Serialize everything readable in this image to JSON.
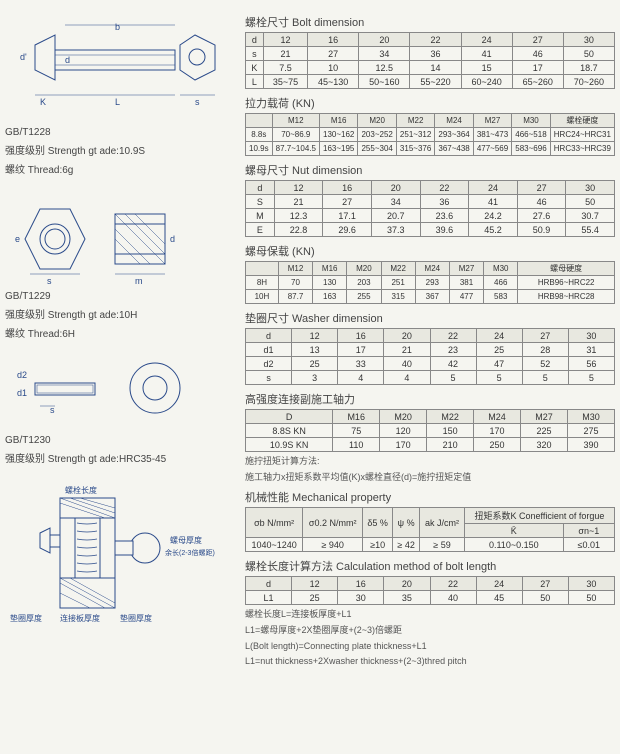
{
  "diagrams": {
    "bolt": {
      "standard": "GB/T1228",
      "strength_label": "强度级别 Strength gt ade:10.9S",
      "thread_label": "螺纹 Thread:6g",
      "dims": [
        "d'",
        "d",
        "b",
        "L",
        "K",
        "s"
      ]
    },
    "nut": {
      "standard": "GB/T1229",
      "strength_label": "强度级别 Strength gt ade:10H",
      "thread_label": "螺纹 Thread:6H",
      "dims": [
        "e",
        "s",
        "d",
        "m"
      ]
    },
    "washer": {
      "standard": "GB/T1230",
      "strength_label": "强度级别 Strength gt ade:HRC35-45",
      "dims": [
        "d2",
        "d1",
        "s"
      ]
    },
    "assembly": {
      "bolt_length": "螺栓长度",
      "bolt_thick": "螺母厚度",
      "plate_thick": "连接板厚度",
      "washer_thick": "垫圈厚度",
      "spare": "螺母厚度 余长(2-3倍螺距)"
    }
  },
  "bolt_dimension": {
    "title": "螺栓尺寸  Bolt dimension",
    "headers": [
      "d",
      "12",
      "16",
      "20",
      "22",
      "24",
      "27",
      "30"
    ],
    "rows": [
      [
        "s",
        "21",
        "27",
        "34",
        "36",
        "41",
        "46",
        "50"
      ],
      [
        "K",
        "7.5",
        "10",
        "12.5",
        "14",
        "15",
        "17",
        "18.7"
      ],
      [
        "L",
        "35~75",
        "45~130",
        "50~160",
        "55~220",
        "60~240",
        "65~260",
        "70~260"
      ]
    ]
  },
  "tensile": {
    "title": "拉力载荷 (KN)",
    "headers": [
      "",
      "M12",
      "M16",
      "M20",
      "M22",
      "M24",
      "M27",
      "M30",
      "螺栓硬度"
    ],
    "rows": [
      [
        "8.8s",
        "70~86.9",
        "130~162",
        "203~252",
        "251~312",
        "293~364",
        "381~473",
        "466~518",
        "HRC24~HRC31"
      ],
      [
        "10.9s",
        "87.7~104.5",
        "163~195",
        "255~304",
        "315~376",
        "367~438",
        "477~569",
        "583~696",
        "HRC33~HRC39"
      ]
    ]
  },
  "nut_dimension": {
    "title": "螺母尺寸  Nut dimension",
    "headers": [
      "d",
      "12",
      "16",
      "20",
      "22",
      "24",
      "27",
      "30"
    ],
    "rows": [
      [
        "S",
        "21",
        "27",
        "34",
        "36",
        "41",
        "46",
        "50"
      ],
      [
        "M",
        "12.3",
        "17.1",
        "20.7",
        "23.6",
        "24.2",
        "27.6",
        "30.7"
      ],
      [
        "E",
        "22.8",
        "29.6",
        "37.3",
        "39.6",
        "45.2",
        "50.9",
        "55.4"
      ]
    ]
  },
  "nut_load": {
    "title": "螺母保载 (KN)",
    "headers": [
      "",
      "M12",
      "M16",
      "M20",
      "M22",
      "M24",
      "M27",
      "M30",
      "螺母硬度"
    ],
    "rows": [
      [
        "8H",
        "70",
        "130",
        "203",
        "251",
        "293",
        "381",
        "466",
        "HRB96~HRC22"
      ],
      [
        "10H",
        "87.7",
        "163",
        "255",
        "315",
        "367",
        "477",
        "583",
        "HRB98~HRC28"
      ]
    ]
  },
  "washer_dimension": {
    "title": "垫圈尺寸  Washer dimension",
    "headers": [
      "d",
      "12",
      "16",
      "20",
      "22",
      "24",
      "27",
      "30"
    ],
    "rows": [
      [
        "d1",
        "13",
        "17",
        "21",
        "23",
        "25",
        "28",
        "31"
      ],
      [
        "d2",
        "25",
        "33",
        "40",
        "42",
        "47",
        "52",
        "56"
      ],
      [
        "s",
        "3",
        "4",
        "4",
        "5",
        "5",
        "5",
        "5"
      ]
    ]
  },
  "torque": {
    "title": "高强度连接副施工轴力",
    "headers": [
      "D",
      "M16",
      "M20",
      "M22",
      "M24",
      "M27",
      "M30"
    ],
    "rows": [
      [
        "8.8S KN",
        "75",
        "120",
        "150",
        "170",
        "225",
        "275"
      ],
      [
        "10.9S KN",
        "110",
        "170",
        "210",
        "250",
        "320",
        "390"
      ]
    ],
    "note1": "施拧扭矩计算方法:",
    "note2": "施工轴力x扭矩系数平均值(K)x螺栓直径(d)=施拧扭矩定值"
  },
  "mechanical": {
    "title": "机械性能  Mechanical property",
    "headers": [
      "σb N/mm²",
      "σ0.2 N/mm²",
      "δ5 %",
      "ψ %",
      "ak J/cm²",
      "K̄",
      "σn~1"
    ],
    "subheader": "扭矩系数K Conefficient of forgue",
    "rows": [
      [
        "1040~1240",
        "≥ 940",
        "≥10",
        "≥ 42",
        "≥ 59",
        "0.110~0.150",
        "≤0.01"
      ]
    ]
  },
  "bolt_length": {
    "title": "螺栓长度计算方法 Calculation method of bolt length",
    "headers": [
      "d",
      "12",
      "16",
      "20",
      "22",
      "24",
      "27",
      "30"
    ],
    "rows": [
      [
        "L1",
        "25",
        "30",
        "35",
        "40",
        "45",
        "50",
        "50"
      ]
    ],
    "note1": "螺栓长度L=连接板厚度+L1",
    "note2": "L1=螺母厚度+2X垫圈厚度+(2~3)倍螺距",
    "note3": "L(Bolt length)=Connecting plate thickness+L1",
    "note4": "L1=nut thickness+2Xwasher thickness+(2~3)thred pitch"
  }
}
